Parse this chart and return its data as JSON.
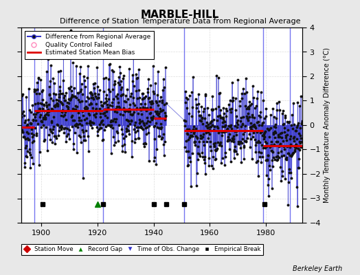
{
  "title": "MARBLE-HILL",
  "subtitle": "Difference of Station Temperature Data from Regional Average",
  "ylabel_right": "Monthly Temperature Anomaly Difference (°C)",
  "credit": "Berkeley Earth",
  "xlim": [
    1893,
    1993
  ],
  "ylim": [
    -4,
    4
  ],
  "yticks": [
    -4,
    -3,
    -2,
    -1,
    0,
    1,
    2,
    3,
    4
  ],
  "xticks": [
    1900,
    1920,
    1940,
    1960,
    1980
  ],
  "background_color": "#e8e8e8",
  "plot_bg_color": "#ffffff",
  "seed": 42,
  "segments": [
    {
      "start": 1893.0,
      "end": 1897.5,
      "mean": -0.08
    },
    {
      "start": 1897.5,
      "end": 1922.0,
      "mean": 0.6
    },
    {
      "start": 1922.0,
      "end": 1940.0,
      "mean": 0.65
    },
    {
      "start": 1940.0,
      "end": 1944.5,
      "mean": 0.28
    },
    {
      "start": 1951.0,
      "end": 1979.0,
      "mean": -0.22
    },
    {
      "start": 1979.0,
      "end": 1988.5,
      "mean": -0.85
    },
    {
      "start": 1988.5,
      "end": 1993.0,
      "mean": -0.85
    }
  ],
  "gap_start": 1944.5,
  "gap_end": 1951.0,
  "vertical_lines": [
    1897.5,
    1922.0,
    1951.0,
    1979.0,
    1988.5
  ],
  "empirical_breaks": [
    1900.5,
    1922.0,
    1940.0,
    1944.5,
    1951.0,
    1979.5
  ],
  "record_gaps": [
    1920.0
  ],
  "time_of_obs": [],
  "station_moves": [],
  "noise_std": 0.85,
  "line_color": "#3333cc",
  "dot_color": "#111111",
  "vline_color": "#6666ee",
  "red_line_color": "#dd0000",
  "grid_color": "#cccccc"
}
